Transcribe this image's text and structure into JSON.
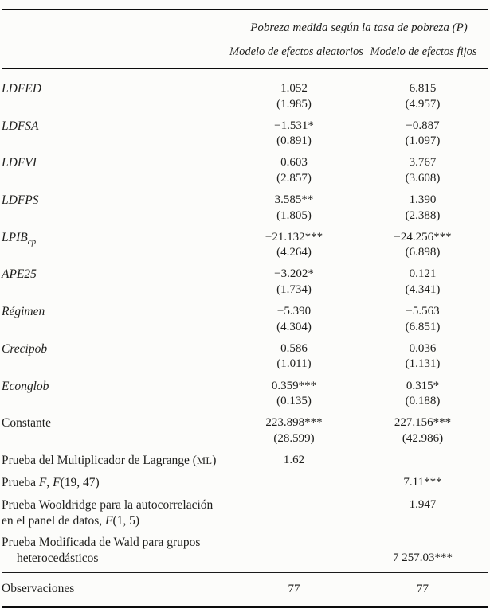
{
  "table": {
    "spanner": "Pobreza medida según la tasa de pobreza (P)",
    "columns": [
      "Modelo de efectos aleatorios",
      "Modelo de efectos fijos"
    ],
    "coef_rows": [
      {
        "label": "LDFED",
        "sub": "",
        "re": "1.052",
        "re_se": "(1.985)",
        "fe": "6.815",
        "fe_se": "(4.957)"
      },
      {
        "label": "LDFSA",
        "sub": "",
        "re": "−1.531*",
        "re_se": "(0.891)",
        "fe": "−0.887",
        "fe_se": "(1.097)"
      },
      {
        "label": "LDFVI",
        "sub": "",
        "re": "0.603",
        "re_se": "(2.857)",
        "fe": "3.767",
        "fe_se": "(3.608)"
      },
      {
        "label": "LDFPS",
        "sub": "",
        "re": "3.585**",
        "re_se": "(1.805)",
        "fe": "1.390",
        "fe_se": "(2.388)"
      },
      {
        "label": "LPIB",
        "sub": "cp",
        "re": "−21.132***",
        "re_se": "(4.264)",
        "fe": "−24.256***",
        "fe_se": "(6.898)"
      },
      {
        "label": "APE25",
        "sub": "",
        "re": "−3.202*",
        "re_se": "(1.734)",
        "fe": "0.121",
        "fe_se": "(4.341)"
      },
      {
        "label": "Régimen",
        "sub": "",
        "re": "−5.390",
        "re_se": "(4.304)",
        "fe": "−5.563",
        "fe_se": "(6.851)"
      },
      {
        "label": "Crecipob",
        "sub": "",
        "re": "0.586",
        "re_se": "(1.011)",
        "fe": "0.036",
        "fe_se": "(1.131)"
      },
      {
        "label": "Econglob",
        "sub": "",
        "re": "0.359***",
        "re_se": "(0.135)",
        "fe": "0.315*",
        "fe_se": "(0.188)"
      },
      {
        "label": "Constante",
        "sub": "",
        "re": "223.898***",
        "re_se": "(28.599)",
        "fe": "227.156***",
        "fe_se": "(42.986)"
      }
    ],
    "lagrange": {
      "pre": "Prueba del Multiplicador de Lagrange (",
      "sc": "ML",
      "post": ")",
      "re": "1.62"
    },
    "f_test": {
      "p1": "Prueba ",
      "f1": "F",
      "p2": ", ",
      "f2": "F",
      "p3": "(19, 47)",
      "fe": "7.11***"
    },
    "wooldridge": {
      "line1": "Prueba Wooldridge para la autocorrelación",
      "l2a": "en el panel de datos, ",
      "f": "F",
      "l2b": "(1, 5)",
      "fe": "1.947"
    },
    "wald": {
      "line1": "Prueba Modificada de Wald para grupos",
      "line2": "heterocedásticos",
      "fe": "7 257.03***"
    },
    "observations": {
      "label": "Observaciones",
      "re": "77",
      "fe": "77"
    }
  }
}
